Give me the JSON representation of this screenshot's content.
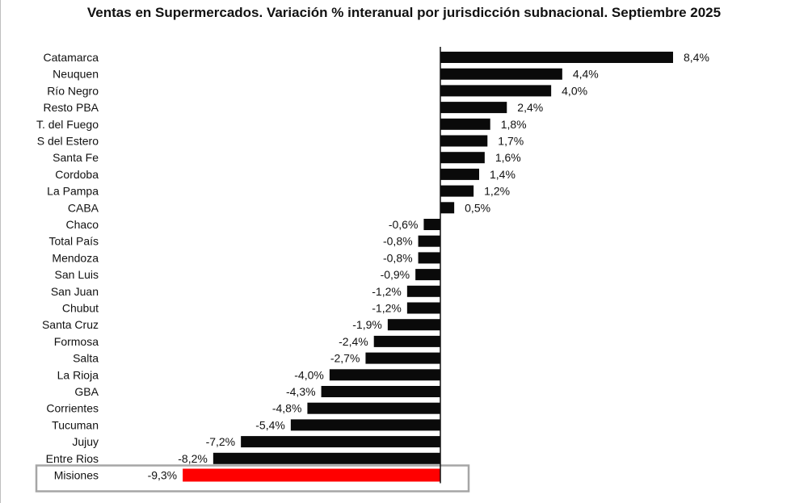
{
  "chart_data": {
    "type": "bar",
    "orientation": "horizontal",
    "title": "Ventas en Supermercados. Variación % interanual por jurisdicción subnacional. Septiembre 2025",
    "categories": [
      "Catamarca",
      "Neuquen",
      "Río Negro",
      "Resto PBA",
      "T. del Fuego",
      "S del Estero",
      "Santa Fe",
      "Cordoba",
      "La Pampa",
      "CABA",
      "Chaco",
      "Total País",
      "Mendoza",
      "San Luis",
      "San Juan",
      "Chubut",
      "Santa Cruz",
      "Formosa",
      "Salta",
      "La Rioja",
      "GBA",
      "Corrientes",
      "Tucuman",
      "Jujuy",
      "Entre Rios",
      "Misiones"
    ],
    "values": [
      8.4,
      4.4,
      4.0,
      2.4,
      1.8,
      1.7,
      1.6,
      1.4,
      1.2,
      0.5,
      -0.6,
      -0.8,
      -0.8,
      -0.9,
      -1.2,
      -1.2,
      -1.9,
      -2.4,
      -2.7,
      -4.0,
      -4.3,
      -4.8,
      -5.4,
      -7.2,
      -8.2,
      -9.3
    ],
    "value_labels": [
      "8,4%",
      "4,4%",
      "4,0%",
      "2,4%",
      "1,8%",
      "1,7%",
      "1,6%",
      "1,4%",
      "1,2%",
      "0,5%",
      "-0,6%",
      "-0,8%",
      "-0,8%",
      "-0,9%",
      "-1,2%",
      "-1,2%",
      "-1,9%",
      "-2,4%",
      "-2,7%",
      "-4,0%",
      "-4,3%",
      "-4,8%",
      "-5,4%",
      "-7,2%",
      "-8,2%",
      "-9,3%"
    ],
    "xlim": [
      -9.3,
      8.4
    ],
    "grid": false,
    "legend": "none",
    "highlight_category": "Misiones",
    "colors": {
      "bar": "#0a0a0a",
      "highlight_bar": "#ff0000",
      "highlight_box": "#a6a6a6",
      "axis": "#111111"
    }
  }
}
